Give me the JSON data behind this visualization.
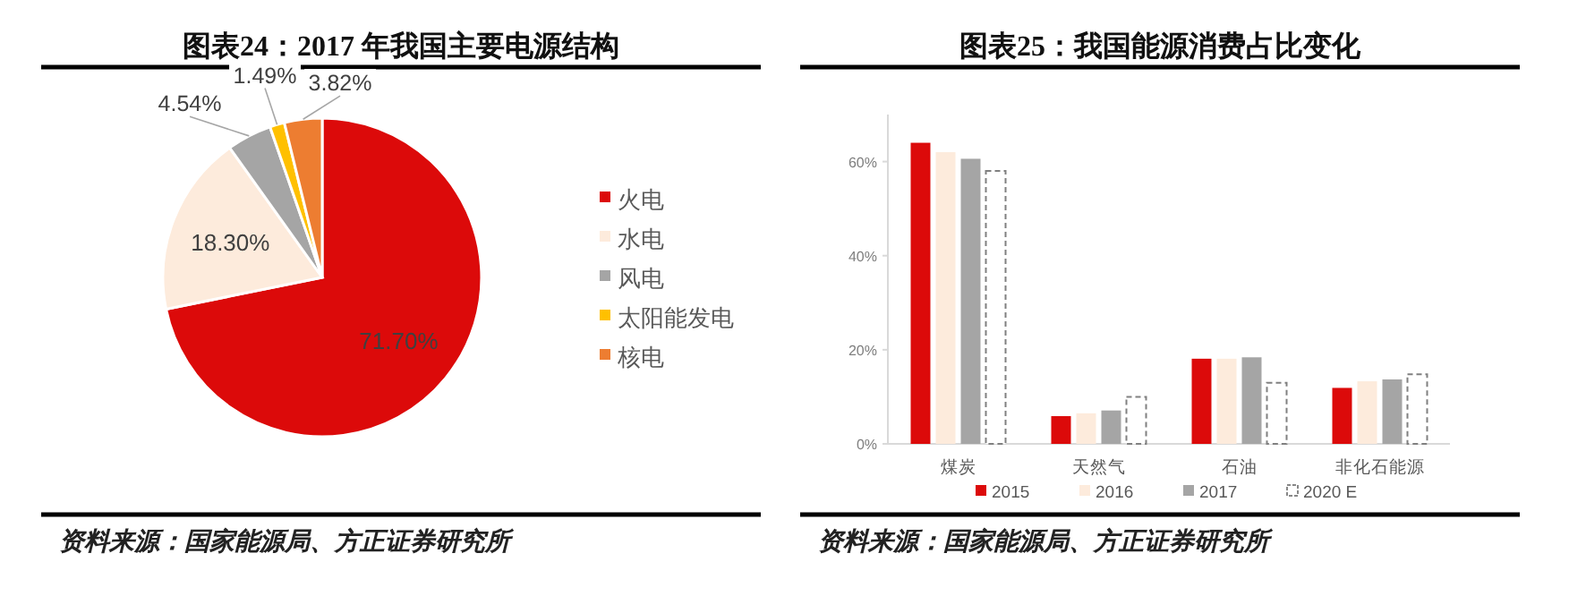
{
  "chart_data": [
    {
      "type": "pie",
      "title": "图表24：2017 年我国主要电源结构",
      "categories": [
        "火电",
        "水电",
        "风电",
        "太阳能发电",
        "核电"
      ],
      "values": [
        71.7,
        18.3,
        4.54,
        1.49,
        3.82
      ],
      "value_labels": [
        "71.70%",
        "18.30%",
        "4.54%",
        "1.49%",
        "3.82%"
      ],
      "colors": [
        "#dc0a0a",
        "#fdebdc",
        "#a5a5a5",
        "#ffc000",
        "#ed7d31"
      ],
      "legend": "right",
      "annotations": [
        "资料来源：国家能源局、方正证券研究所"
      ]
    },
    {
      "type": "bar",
      "title": "图表25：我国能源消费占比变化",
      "categories": [
        "煤炭",
        "天然气",
        "石油",
        "非化石能源"
      ],
      "series": [
        {
          "name": "2015",
          "color": "#dc0a0a",
          "values": [
            64.0,
            5.9,
            18.1,
            11.9
          ]
        },
        {
          "name": "2016",
          "color": "#fdebdc",
          "values": [
            62.0,
            6.5,
            18.1,
            13.3
          ]
        },
        {
          "name": "2017",
          "color": "#a5a5a5",
          "values": [
            60.6,
            7.1,
            18.4,
            13.7
          ]
        },
        {
          "name": "2020 E",
          "color": "#ffffff",
          "line_style": "dashed",
          "values": [
            58.0,
            10.0,
            13.0,
            14.8
          ]
        }
      ],
      "ylim": [
        0,
        70
      ],
      "yticks": [
        {
          "value": 0,
          "label": "0%"
        },
        {
          "value": 20,
          "label": "20%"
        },
        {
          "value": 40,
          "label": "40%"
        },
        {
          "value": 60,
          "label": "60%"
        }
      ],
      "legend": "bottom",
      "annotations": [
        "资料来源：国家能源局、方正证券研究所"
      ]
    }
  ]
}
